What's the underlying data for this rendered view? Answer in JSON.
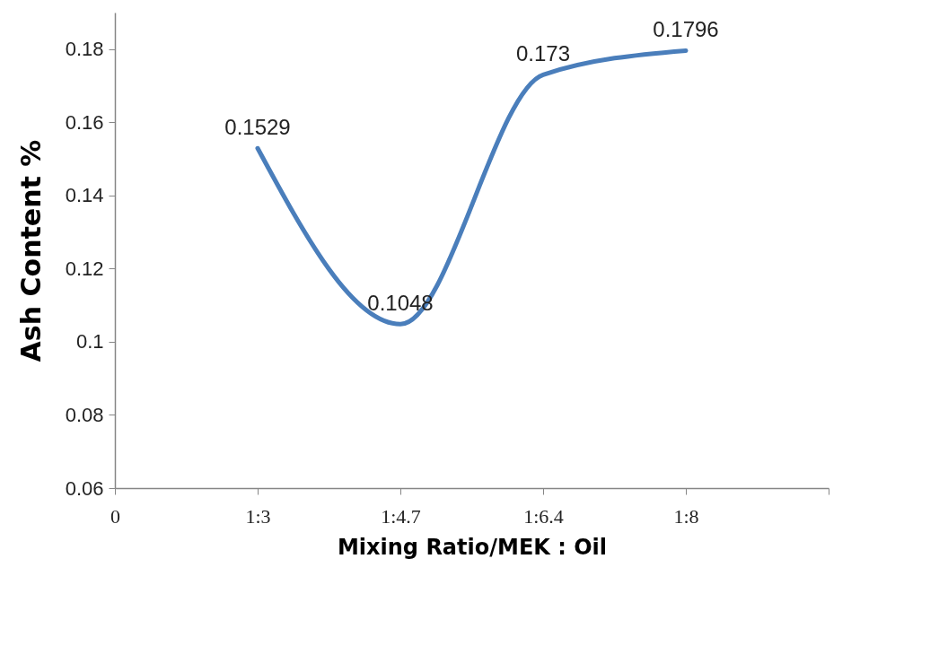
{
  "chart_data": {
    "type": "line",
    "xlabel": "Mixing Ratio/MEK :  Oil",
    "ylabel": "Ash Content  %",
    "categories": [
      "0",
      "1:3",
      "1:4.7",
      "1:6.4",
      "1:8",
      null
    ],
    "ylim": [
      0.06,
      0.19
    ],
    "yticks": [
      0.06,
      0.08,
      0.1,
      0.12,
      0.14,
      0.16,
      0.18
    ],
    "series": [
      {
        "color": "#4a7ebb",
        "values": [
          null,
          0.1529,
          0.1048,
          0.173,
          0.1796,
          null
        ]
      }
    ],
    "data_labels": true,
    "grid": false,
    "legend": false,
    "marker": "none",
    "line_style": "solid"
  }
}
